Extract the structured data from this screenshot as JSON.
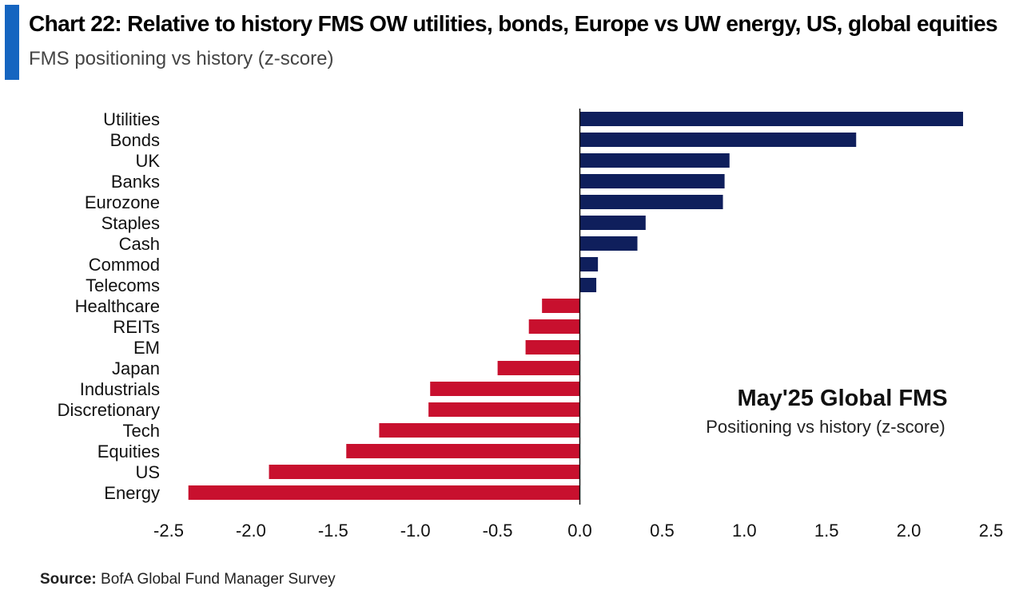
{
  "header": {
    "title": "Chart 22: Relative to history FMS OW utilities, bonds, Europe vs UW energy, US, global equities",
    "subtitle": "FMS positioning vs history (z-score)"
  },
  "footer": {
    "source_label": "Source:",
    "source_text": "BofA Global Fund Manager Survey"
  },
  "colors": {
    "positive": "#0f1f5c",
    "negative": "#c8102e",
    "accent": "#1565c0"
  },
  "chart_data": {
    "type": "bar",
    "orientation": "horizontal",
    "categories": [
      "Utilities",
      "Bonds",
      "UK",
      "Banks",
      "Eurozone",
      "Staples",
      "Cash",
      "Commod",
      "Telecoms",
      "Healthcare",
      "REITs",
      "EM",
      "Japan",
      "Industrials",
      "Discretionary",
      "Tech",
      "Equities",
      "US",
      "Energy"
    ],
    "values": [
      2.33,
      1.68,
      0.91,
      0.88,
      0.87,
      0.4,
      0.35,
      0.11,
      0.1,
      -0.23,
      -0.31,
      -0.33,
      -0.5,
      -0.91,
      -0.92,
      -1.22,
      -1.42,
      -1.89,
      -2.38
    ],
    "xlim": [
      -2.5,
      2.5
    ],
    "xticks": [
      "-2.5",
      "-2.0",
      "-1.5",
      "-1.0",
      "-0.5",
      "0.0",
      "0.5",
      "1.0",
      "1.5",
      "2.0",
      "2.5"
    ],
    "annotation": {
      "title": "May'25 Global FMS",
      "subtitle": "Positioning vs history (z-score)"
    },
    "grid": false,
    "legend": "none"
  }
}
